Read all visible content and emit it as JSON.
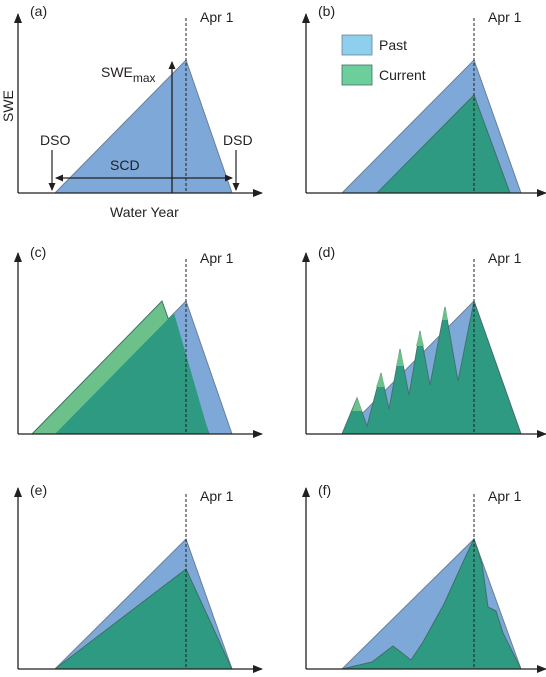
{
  "colors": {
    "past": "#7da8d8",
    "current": "#2e9a82",
    "current_light": "#6cc08a",
    "axis": "#231f20",
    "past_legend": "#8fcfee",
    "current_legend": "#6cce9a"
  },
  "panels": {
    "a": {
      "tag": "(a)",
      "date": "Apr 1"
    },
    "b": {
      "tag": "(b)",
      "date": "Apr 1"
    },
    "c": {
      "tag": "(c)",
      "date": "Apr 1"
    },
    "d": {
      "tag": "(d)",
      "date": "Apr 1"
    },
    "e": {
      "tag": "(e)",
      "date": "Apr 1"
    },
    "f": {
      "tag": "(f)",
      "date": "Apr 1"
    }
  },
  "labels": {
    "y_axis": "SWE",
    "x_axis": "Water Year",
    "swe_max_main": "SWE",
    "swe_max_sub": "max",
    "dso": "DSO",
    "dsd": "DSD",
    "scd": "SCD"
  },
  "legend": {
    "past": "Past",
    "current": "Current"
  }
}
